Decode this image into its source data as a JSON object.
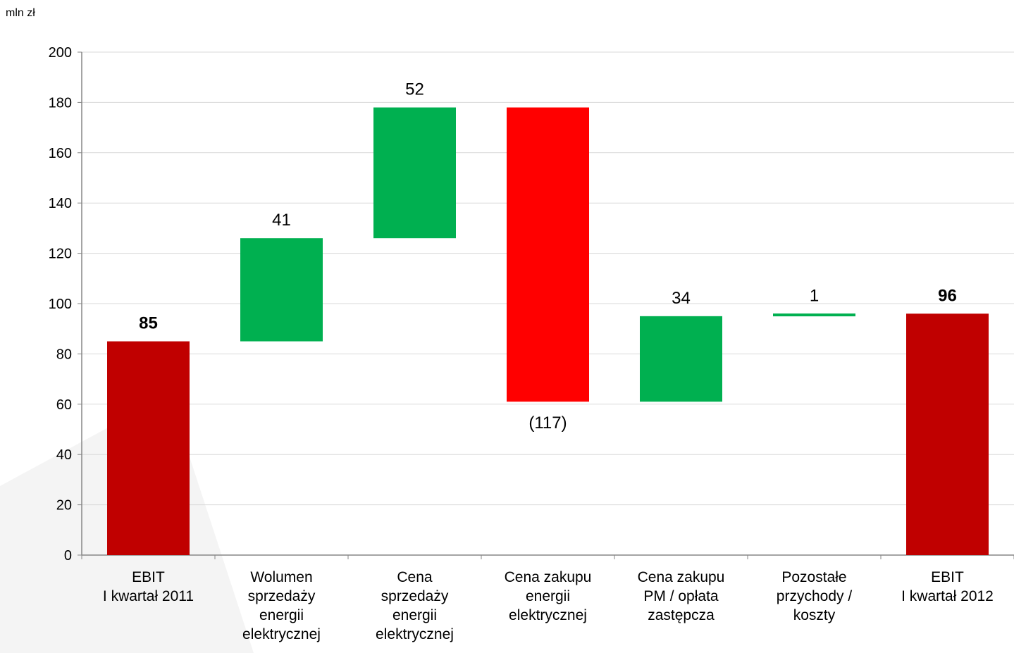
{
  "chart_data": {
    "type": "bar",
    "subtype": "waterfall",
    "unit_label": "mln zł",
    "ylim": [
      0,
      200
    ],
    "yticks": [
      0,
      20,
      40,
      60,
      80,
      100,
      120,
      140,
      160,
      180,
      200
    ],
    "grid": true,
    "categories": [
      [
        "EBIT",
        "I kwartał 2011"
      ],
      [
        "Wolumen",
        "sprzedaży",
        "energii",
        "elektrycznej"
      ],
      [
        "Cena",
        "sprzedaży",
        "energii",
        "elektrycznej"
      ],
      [
        "Cena zakupu",
        "energii",
        "elektrycznej"
      ],
      [
        "Cena zakupu",
        "PM / opłata",
        "zastępcza"
      ],
      [
        "Pozostałe",
        "przychody /",
        "koszty"
      ],
      [
        "EBIT",
        "I kwartał 2012"
      ]
    ],
    "bars": [
      {
        "kind": "total",
        "start": 0,
        "end": 85,
        "label": "85",
        "bold": true,
        "color": "#c00000"
      },
      {
        "kind": "increase",
        "start": 85,
        "end": 126,
        "label": "41",
        "bold": false,
        "color": "#00b050"
      },
      {
        "kind": "increase",
        "start": 126,
        "end": 178,
        "label": "52",
        "bold": false,
        "color": "#00b050"
      },
      {
        "kind": "decrease",
        "start": 178,
        "end": 61,
        "label": "(117)",
        "bold": false,
        "color": "#ff0000"
      },
      {
        "kind": "increase",
        "start": 61,
        "end": 95,
        "label": "34",
        "bold": false,
        "color": "#00b050"
      },
      {
        "kind": "increase",
        "start": 95,
        "end": 96,
        "label": "1",
        "bold": false,
        "color": "#00b050"
      },
      {
        "kind": "total",
        "start": 0,
        "end": 96,
        "label": "96",
        "bold": true,
        "color": "#c00000"
      }
    ]
  }
}
